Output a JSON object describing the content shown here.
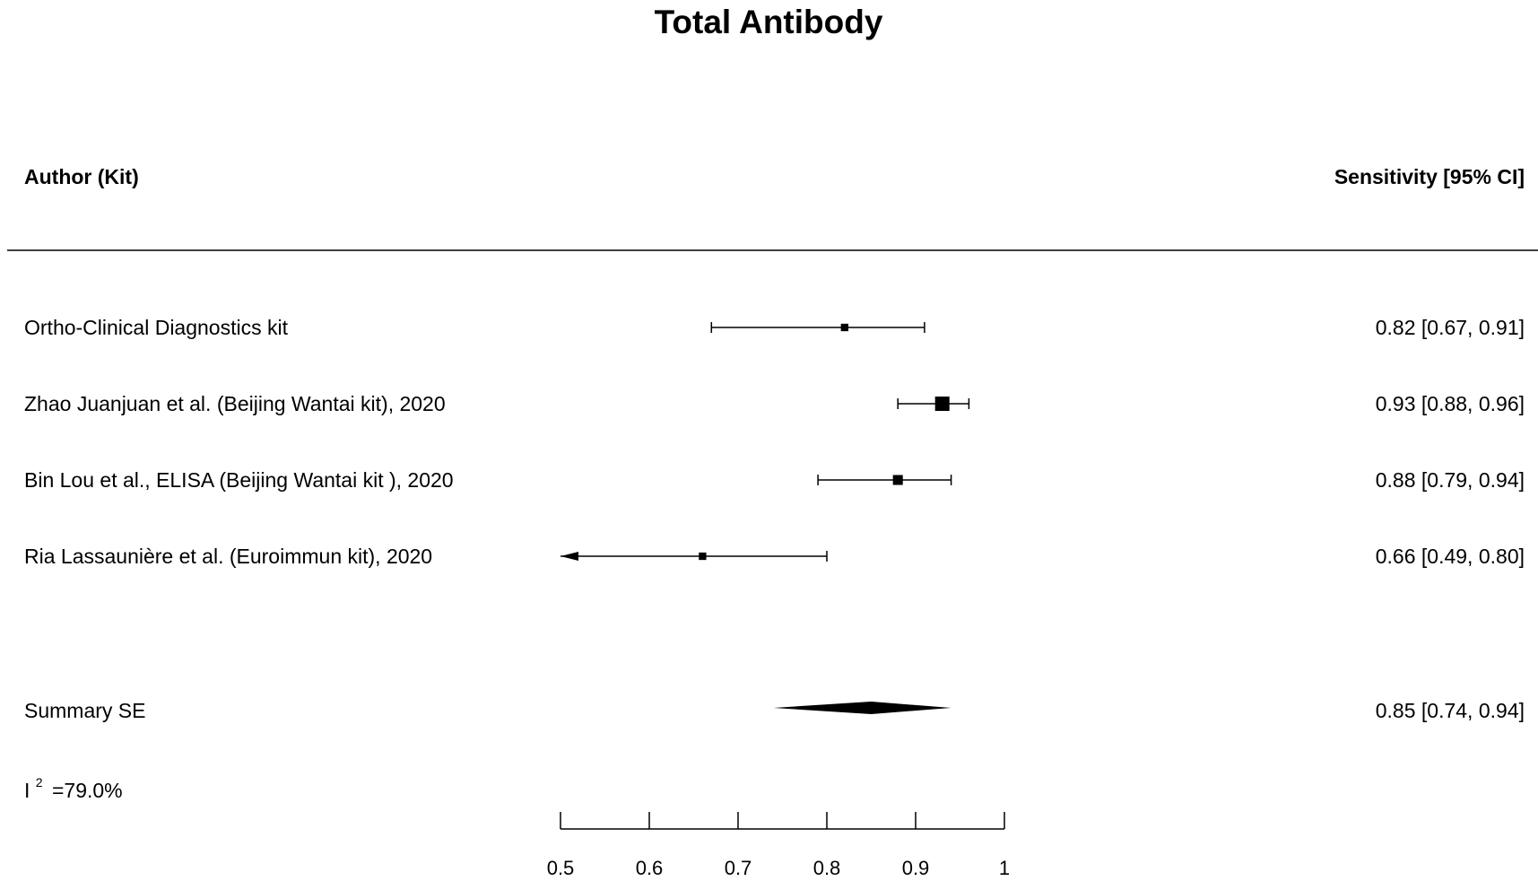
{
  "chart_data": {
    "type": "forest",
    "title": "Total Antibody",
    "left_header": "Author (Kit)",
    "right_header": "Sensitivity [95% CI]",
    "studies": [
      {
        "label": "Ortho-Clinical Diagnostics kit",
        "estimate": 0.82,
        "lower": 0.67,
        "upper": 0.91,
        "text": "0.82 [0.67, 0.91]",
        "weight": 0.3
      },
      {
        "label": "Zhao Juanjuan et al. (Beijing Wantai kit), 2020",
        "estimate": 0.93,
        "lower": 0.88,
        "upper": 0.96,
        "text": "0.93 [0.88, 0.96]",
        "weight": 1.0
      },
      {
        "label": "Bin Lou et al., ELISA (Beijing Wantai kit ), 2020",
        "estimate": 0.88,
        "lower": 0.79,
        "upper": 0.94,
        "text": "0.88 [0.79, 0.94]",
        "weight": 0.55
      },
      {
        "label": "Ria Lassaunière et al. (Euroimmun kit), 2020",
        "estimate": 0.66,
        "lower": 0.49,
        "upper": 0.8,
        "text": "0.66 [0.49, 0.80]",
        "weight": 0.3,
        "lower_truncated": true
      }
    ],
    "summary": {
      "label": "Summary SE",
      "estimate": 0.85,
      "lower": 0.74,
      "upper": 0.94,
      "text": "0.85 [0.74, 0.94]"
    },
    "heterogeneity": {
      "symbol": "I",
      "superscript": "2",
      "value": "=79.0%"
    },
    "xlim": [
      0.5,
      1
    ],
    "xticks": [
      0.5,
      0.6,
      0.7,
      0.8,
      0.9,
      1
    ],
    "xtick_labels": [
      "0.5",
      "0.6",
      "0.7",
      "0.8",
      "0.9",
      "1"
    ],
    "grid": false
  }
}
